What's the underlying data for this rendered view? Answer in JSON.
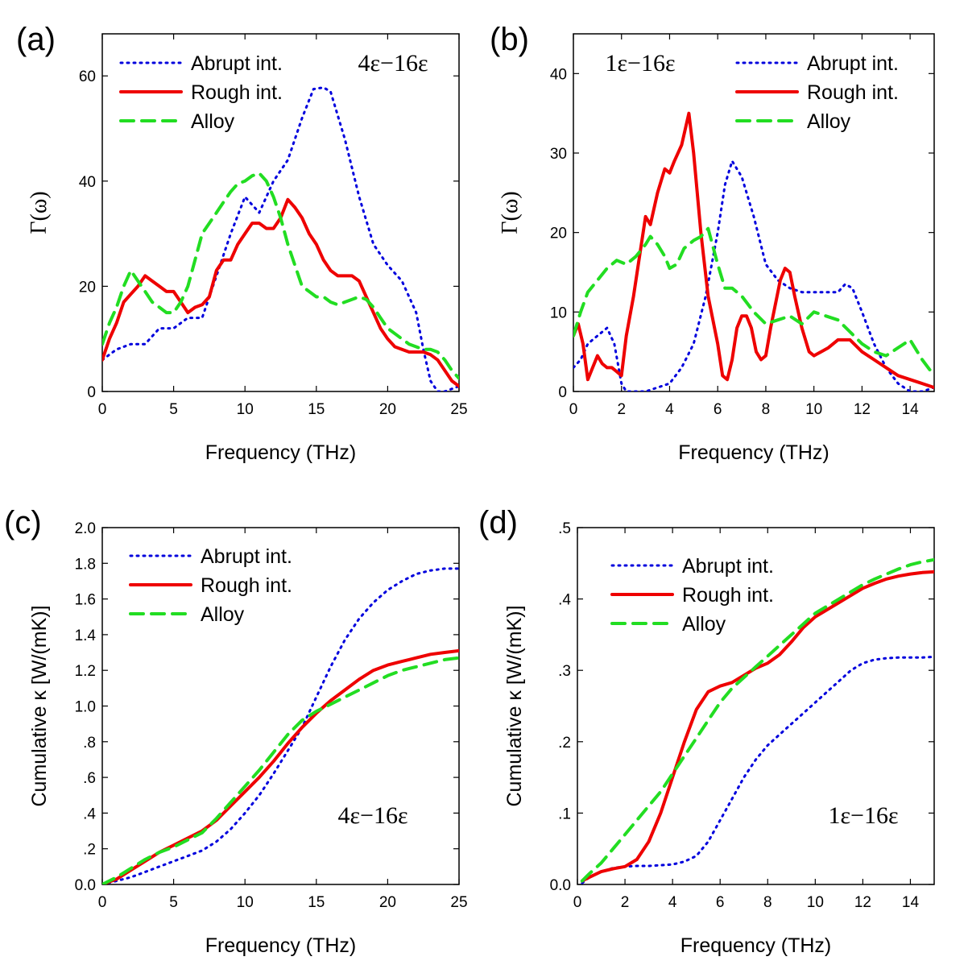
{
  "colors": {
    "abrupt": "#0000dd",
    "rough": "#ee0000",
    "alloy": "#22dd22",
    "axis": "#000000"
  },
  "chart_data": [
    {
      "id": "a",
      "type": "line",
      "panel_label": "(a)",
      "annotation": "4ε−16ε",
      "xlabel": "Frequency (THz)",
      "ylabel": "Γ(ω)",
      "xlim": [
        0,
        25
      ],
      "ylim": [
        0,
        68
      ],
      "xticks": [
        0,
        5,
        10,
        15,
        20,
        25
      ],
      "xtick_labels": [
        "0",
        "5",
        "10",
        "15",
        "20",
        "25"
      ],
      "yticks": [
        0,
        20,
        40,
        60
      ],
      "ytick_labels": [
        "0",
        "20",
        "40",
        "60"
      ],
      "legend_position": "top-left",
      "series": [
        {
          "name": "Abrupt int.",
          "key": "abrupt",
          "x": [
            0,
            1,
            2,
            3,
            4,
            5,
            6,
            7,
            8,
            9,
            10,
            11,
            12,
            13,
            14,
            14.8,
            15.5,
            16,
            17,
            18,
            19,
            20,
            21,
            21.5,
            22,
            22.5,
            23,
            23.5,
            24,
            25
          ],
          "y": [
            6,
            8,
            9,
            9,
            12,
            12,
            14,
            14,
            22,
            30,
            37,
            34,
            40,
            44,
            52,
            57.5,
            57.8,
            57,
            48,
            37,
            28,
            24,
            21,
            18,
            15,
            8,
            2,
            0,
            0,
            1
          ]
        },
        {
          "name": "Rough int.",
          "key": "rough",
          "x": [
            0,
            0.5,
            1,
            1.5,
            2,
            2.5,
            3,
            3.5,
            4,
            4.5,
            5,
            5.5,
            6,
            6.5,
            7,
            7.5,
            8,
            8.5,
            9,
            9.5,
            10,
            10.5,
            11,
            11.5,
            12,
            12.5,
            13,
            13.5,
            14,
            14.5,
            15,
            15.5,
            16,
            16.5,
            17,
            17.5,
            18,
            18.5,
            19,
            19.5,
            20,
            20.5,
            21,
            21.5,
            22,
            22.5,
            23,
            23.5,
            24,
            24.5,
            25
          ],
          "y": [
            6,
            10,
            13,
            17,
            18.5,
            20,
            22,
            21,
            20,
            19,
            19,
            17,
            15,
            16,
            16.5,
            18,
            23,
            25,
            25,
            28,
            30,
            32,
            32,
            31,
            31,
            33,
            36.5,
            35,
            33,
            30,
            28,
            25,
            23,
            22,
            22,
            22,
            21,
            18,
            15,
            12,
            10,
            8.5,
            8,
            7.5,
            7.5,
            7.5,
            7,
            6,
            4,
            2,
            1
          ]
        },
        {
          "name": "Alloy",
          "key": "alloy",
          "x": [
            0,
            0.5,
            1,
            1.5,
            2,
            2.5,
            3,
            3.5,
            4,
            4.5,
            5,
            5.5,
            6,
            6.5,
            7,
            7.5,
            8,
            8.5,
            9,
            9.5,
            10,
            10.5,
            11,
            11.5,
            12,
            12.5,
            13,
            13.5,
            14,
            14.5,
            15,
            15.5,
            16,
            16.5,
            17,
            17.5,
            18,
            18.5,
            19,
            19.5,
            20,
            20.5,
            21,
            21.5,
            22,
            22.5,
            23,
            23.5,
            24,
            24.5,
            25
          ],
          "y": [
            9,
            13,
            16,
            20,
            23,
            21,
            19,
            17,
            16,
            15,
            15,
            17,
            20,
            25,
            30,
            32,
            34,
            36,
            38,
            39.5,
            40,
            41,
            41.5,
            40,
            37,
            33,
            28,
            24,
            20,
            19,
            18,
            18,
            17,
            16.5,
            17,
            17.5,
            18,
            17.5,
            16,
            14,
            12,
            11,
            10,
            9,
            8.5,
            8,
            8,
            7.5,
            6,
            4,
            2.5
          ]
        }
      ]
    },
    {
      "id": "b",
      "type": "line",
      "panel_label": "(b)",
      "annotation": "1ε−16ε",
      "xlabel": "Frequency (THz)",
      "ylabel": "Γ(ω)",
      "xlim": [
        0,
        15
      ],
      "ylim": [
        0,
        45
      ],
      "xticks": [
        0,
        2,
        4,
        6,
        8,
        10,
        12,
        14
      ],
      "xtick_labels": [
        "0",
        "2",
        "4",
        "6",
        "8",
        "10",
        "12",
        "14"
      ],
      "yticks": [
        0,
        10,
        20,
        30,
        40
      ],
      "ytick_labels": [
        "0",
        "10",
        "20",
        "30",
        "40"
      ],
      "legend_position": "top-right",
      "series": [
        {
          "name": "Abrupt int.",
          "key": "abrupt",
          "x": [
            0,
            0.3,
            0.6,
            1,
            1.4,
            1.7,
            2,
            2.2,
            2.5,
            3,
            3.5,
            4,
            4.5,
            5,
            5.5,
            6,
            6.3,
            6.6,
            7,
            7.5,
            8,
            8.5,
            9,
            9.5,
            10,
            10.5,
            11,
            11.3,
            11.6,
            12,
            12.5,
            13,
            13.5,
            14,
            14.5,
            15
          ],
          "y": [
            3,
            4,
            6,
            7,
            8,
            6,
            1,
            0,
            0,
            0,
            0.5,
            1,
            3,
            6,
            12,
            20,
            26,
            29,
            27,
            22,
            16,
            14,
            13,
            12.5,
            12.5,
            12.5,
            12.5,
            13.5,
            13,
            10,
            6,
            3,
            1,
            0,
            0,
            0.5
          ]
        },
        {
          "name": "Rough int.",
          "key": "rough",
          "x": [
            0,
            0.2,
            0.4,
            0.6,
            0.8,
            1,
            1.2,
            1.4,
            1.6,
            1.8,
            2,
            2.2,
            2.5,
            2.8,
            3,
            3.2,
            3.5,
            3.8,
            4,
            4.2,
            4.5,
            4.8,
            5,
            5.3,
            5.6,
            6,
            6.2,
            6.4,
            6.6,
            6.8,
            7,
            7.2,
            7.4,
            7.6,
            7.8,
            8,
            8.2,
            8.4,
            8.6,
            8.8,
            9,
            9.2,
            9.5,
            9.8,
            10,
            10.3,
            10.6,
            11,
            11.5,
            12,
            12.5,
            13,
            13.5,
            14,
            14.5,
            15
          ],
          "y": [
            7,
            8.5,
            6,
            1.5,
            3,
            4.5,
            3.5,
            3,
            3,
            2.5,
            2,
            7,
            12,
            18,
            22,
            21,
            25,
            28,
            27.5,
            29,
            31,
            35,
            30,
            20,
            12,
            6,
            2,
            1.5,
            4,
            8,
            9.5,
            9.5,
            8,
            5,
            4,
            4.5,
            8,
            11,
            14,
            15.5,
            15,
            12,
            8,
            5,
            4.5,
            5,
            5.5,
            6.5,
            6.5,
            5,
            4,
            3,
            2,
            1.5,
            1,
            0.5
          ]
        },
        {
          "name": "Alloy",
          "key": "alloy",
          "x": [
            0,
            0.3,
            0.6,
            1,
            1.4,
            1.8,
            2.2,
            2.6,
            3,
            3.2,
            3.5,
            3.8,
            4,
            4.3,
            4.6,
            5,
            5.3,
            5.6,
            6,
            6.3,
            6.6,
            7,
            7.5,
            8,
            8.5,
            9,
            9.5,
            10,
            10.5,
            11,
            11.5,
            12,
            12.5,
            13,
            13.5,
            14,
            14.5,
            15
          ],
          "y": [
            7,
            10,
            12.5,
            14,
            15.5,
            16.5,
            16,
            17,
            18.5,
            19.5,
            18.5,
            17,
            15.5,
            16,
            18,
            19,
            19.5,
            20.5,
            16,
            13,
            13,
            12,
            10,
            8.5,
            9,
            9.5,
            8.5,
            10,
            9.5,
            9,
            7.5,
            6,
            5,
            4.5,
            5.5,
            6.5,
            4,
            2
          ]
        }
      ]
    },
    {
      "id": "c",
      "type": "line",
      "panel_label": "(c)",
      "annotation": "4ε−16ε",
      "xlabel": "Frequency (THz)",
      "ylabel": "Cumulative κ [W/(mK)]",
      "xlim": [
        0,
        25
      ],
      "ylim": [
        0,
        2.0
      ],
      "xticks": [
        0,
        5,
        10,
        15,
        20,
        25
      ],
      "xtick_labels": [
        "0",
        "5",
        "10",
        "15",
        "20",
        "25"
      ],
      "yticks": [
        0,
        0.2,
        0.4,
        0.6,
        0.8,
        1.0,
        1.2,
        1.4,
        1.6,
        1.8,
        2.0
      ],
      "ytick_labels": [
        "0.0",
        ".2",
        ".4",
        ".6",
        ".8",
        "1.0",
        "1.2",
        "1.4",
        "1.6",
        "1.8",
        "2.0"
      ],
      "legend_position": "top-left",
      "series": [
        {
          "name": "Abrupt int.",
          "key": "abrupt",
          "x": [
            0,
            1,
            2,
            3,
            4,
            5,
            6,
            7,
            8,
            9,
            10,
            11,
            12,
            13,
            14,
            15,
            16,
            17,
            18,
            19,
            20,
            21,
            22,
            23,
            24,
            25
          ],
          "y": [
            0,
            0.02,
            0.04,
            0.07,
            0.1,
            0.13,
            0.16,
            0.19,
            0.24,
            0.31,
            0.4,
            0.5,
            0.62,
            0.75,
            0.88,
            1.05,
            1.22,
            1.37,
            1.49,
            1.58,
            1.65,
            1.7,
            1.74,
            1.76,
            1.77,
            1.77
          ]
        },
        {
          "name": "Rough int.",
          "key": "rough",
          "x": [
            0,
            1,
            2,
            3,
            4,
            5,
            6,
            7,
            8,
            9,
            10,
            11,
            12,
            13,
            14,
            15,
            16,
            17,
            18,
            19,
            20,
            21,
            22,
            23,
            24,
            25
          ],
          "y": [
            0,
            0.03,
            0.08,
            0.13,
            0.18,
            0.22,
            0.26,
            0.3,
            0.36,
            0.44,
            0.52,
            0.6,
            0.69,
            0.79,
            0.88,
            0.96,
            1.03,
            1.09,
            1.15,
            1.2,
            1.23,
            1.25,
            1.27,
            1.29,
            1.3,
            1.31
          ]
        },
        {
          "name": "Alloy",
          "key": "alloy",
          "x": [
            0,
            1,
            2,
            3,
            4,
            5,
            6,
            7,
            8,
            9,
            10,
            11,
            12,
            13,
            14,
            15,
            16,
            17,
            18,
            19,
            20,
            21,
            22,
            23,
            24,
            25
          ],
          "y": [
            0,
            0.04,
            0.09,
            0.14,
            0.18,
            0.21,
            0.25,
            0.29,
            0.37,
            0.46,
            0.55,
            0.64,
            0.74,
            0.84,
            0.92,
            0.97,
            1.01,
            1.05,
            1.09,
            1.13,
            1.17,
            1.2,
            1.22,
            1.24,
            1.26,
            1.27
          ]
        }
      ]
    },
    {
      "id": "d",
      "type": "line",
      "panel_label": "(d)",
      "annotation": "1ε−16ε",
      "xlabel": "Frequency (THz)",
      "ylabel": "Cumulative κ [W/(mK)]",
      "xlim": [
        0,
        15
      ],
      "ylim": [
        0,
        0.5
      ],
      "xticks": [
        0,
        2,
        4,
        6,
        8,
        10,
        12,
        14
      ],
      "xtick_labels": [
        "0",
        "2",
        "4",
        "6",
        "8",
        "10",
        "12",
        "14"
      ],
      "yticks": [
        0,
        0.1,
        0.2,
        0.3,
        0.4,
        0.5
      ],
      "ytick_labels": [
        "0.0",
        ".1",
        ".2",
        ".3",
        ".4",
        ".5"
      ],
      "legend_position": "top-left",
      "series": [
        {
          "name": "Abrupt int.",
          "key": "abrupt",
          "x": [
            0.2,
            0.5,
            1,
            1.5,
            2,
            2.5,
            3,
            3.5,
            4,
            4.5,
            5,
            5.5,
            6,
            6.5,
            7,
            7.5,
            8,
            8.5,
            9,
            9.5,
            10,
            10.5,
            11,
            11.5,
            12,
            12.5,
            13,
            13.5,
            14,
            14.5,
            15
          ],
          "y": [
            0.002,
            0.01,
            0.018,
            0.023,
            0.025,
            0.026,
            0.026,
            0.027,
            0.028,
            0.032,
            0.04,
            0.06,
            0.09,
            0.12,
            0.15,
            0.175,
            0.195,
            0.21,
            0.225,
            0.24,
            0.255,
            0.27,
            0.285,
            0.3,
            0.31,
            0.315,
            0.317,
            0.318,
            0.318,
            0.318,
            0.319
          ]
        },
        {
          "name": "Rough int.",
          "key": "rough",
          "x": [
            0.2,
            0.5,
            1,
            1.5,
            2,
            2.5,
            3,
            3.5,
            4,
            4.5,
            5,
            5.5,
            6,
            6.5,
            7,
            7.5,
            8,
            8.5,
            9,
            9.5,
            10,
            10.5,
            11,
            11.5,
            12,
            12.5,
            13,
            13.5,
            14,
            14.5,
            15
          ],
          "y": [
            0.005,
            0.01,
            0.018,
            0.022,
            0.025,
            0.035,
            0.06,
            0.1,
            0.15,
            0.2,
            0.245,
            0.27,
            0.278,
            0.283,
            0.293,
            0.303,
            0.31,
            0.322,
            0.34,
            0.36,
            0.375,
            0.385,
            0.395,
            0.405,
            0.415,
            0.422,
            0.428,
            0.432,
            0.435,
            0.437,
            0.438
          ]
        },
        {
          "name": "Alloy",
          "key": "alloy",
          "x": [
            0.2,
            0.5,
            1,
            1.5,
            2,
            2.5,
            3,
            3.5,
            4,
            4.5,
            5,
            5.5,
            6,
            6.5,
            7,
            7.5,
            8,
            8.5,
            9,
            9.5,
            10,
            10.5,
            11,
            11.5,
            12,
            12.5,
            13,
            13.5,
            14,
            14.5,
            15
          ],
          "y": [
            0.005,
            0.015,
            0.03,
            0.05,
            0.07,
            0.09,
            0.11,
            0.13,
            0.155,
            0.18,
            0.205,
            0.23,
            0.255,
            0.275,
            0.29,
            0.305,
            0.32,
            0.335,
            0.35,
            0.365,
            0.38,
            0.39,
            0.4,
            0.41,
            0.42,
            0.428,
            0.435,
            0.442,
            0.448,
            0.452,
            0.455
          ]
        }
      ]
    }
  ]
}
